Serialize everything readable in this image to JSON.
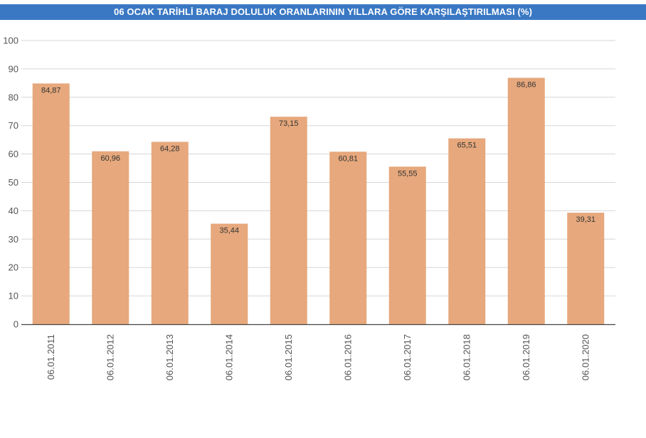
{
  "colors": {
    "title_background": "#3a78c3",
    "title_text": "#ffffff",
    "bar": "#e6a87c",
    "grid": "#d6d6d6",
    "axis": "#444444"
  },
  "chart_data": {
    "type": "bar",
    "title": "06 OCAK TARİHLİ BARAJ DOLULUK ORANLARININ YILLARA GÖRE KARŞILAŞTIRILMASI (%)",
    "xlabel": "",
    "ylabel": "",
    "ylim": [
      0,
      100
    ],
    "yticks": [
      0,
      10,
      20,
      30,
      40,
      50,
      60,
      70,
      80,
      90,
      100
    ],
    "grid": true,
    "legend": "none",
    "categories": [
      "06.01.2011",
      "06.01.2012",
      "06.01.2013",
      "06.01.2014",
      "06.01.2015",
      "06.01.2016",
      "06.01.2017",
      "06.01.2018",
      "06.01.2019",
      "06.01.2020"
    ],
    "values": [
      84.87,
      60.96,
      64.28,
      35.44,
      73.15,
      60.81,
      55.55,
      65.51,
      86.86,
      39.31
    ],
    "data_labels": [
      "84,87",
      "60,96",
      "64,28",
      "35,44",
      "73,15",
      "60,81",
      "55,55",
      "65,51",
      "86,86",
      "39,31"
    ]
  }
}
